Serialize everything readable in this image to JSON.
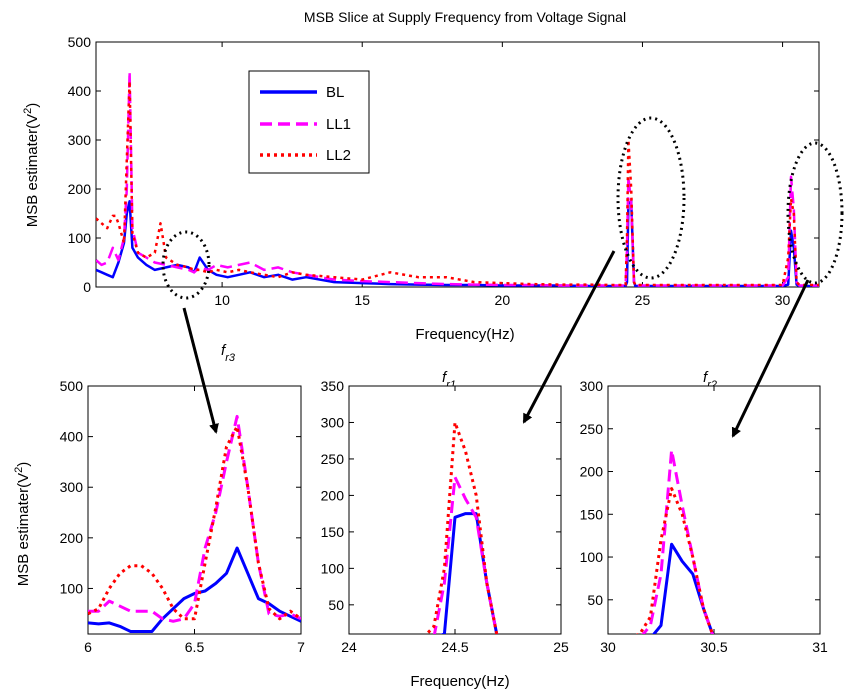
{
  "chart_data": [
    {
      "type": "line",
      "title": "MSB Slice at Supply Frequency from Voltage Signal",
      "xlabel": "Frequency(Hz)",
      "ylabel": "MSB estimater(V²)",
      "xlim": [
        5.5,
        31.3
      ],
      "ylim": [
        0,
        500
      ],
      "xticks": [
        10,
        15,
        20,
        25,
        30
      ],
      "yticks": [
        0,
        100,
        200,
        300,
        400,
        500
      ],
      "legend_position": "upper-left",
      "series": [
        {
          "name": "BL",
          "color": "#0000ff",
          "style": "solid",
          "x": [
            5.5,
            5.7,
            5.9,
            6.1,
            6.3,
            6.5,
            6.6,
            6.7,
            6.8,
            7.0,
            7.3,
            7.6,
            8.0,
            8.4,
            8.8,
            9.0,
            9.2,
            9.5,
            9.8,
            10.2,
            10.6,
            11.0,
            11.5,
            12.0,
            12.5,
            13.0,
            14.0,
            15.0,
            16.0,
            17.0,
            18.0,
            19.0,
            20.0,
            21.0,
            22.0,
            23.0,
            24.0,
            24.4,
            24.45,
            24.5,
            24.6,
            24.7,
            24.75,
            25.0,
            26.0,
            27.0,
            28.0,
            29.0,
            30.0,
            30.2,
            30.3,
            30.4,
            30.5,
            30.6,
            31.3
          ],
          "y": [
            35,
            30,
            25,
            20,
            50,
            90,
            150,
            175,
            80,
            60,
            45,
            35,
            40,
            45,
            40,
            30,
            60,
            35,
            25,
            20,
            25,
            30,
            20,
            25,
            15,
            20,
            10,
            8,
            6,
            5,
            4,
            4,
            3,
            3,
            3,
            2,
            2,
            2,
            10,
            170,
            175,
            10,
            2,
            2,
            2,
            2,
            2,
            2,
            2,
            5,
            115,
            80,
            5,
            2,
            2
          ]
        },
        {
          "name": "LL1",
          "color": "#ff00ff",
          "style": "dashed",
          "x": [
            5.5,
            5.7,
            5.9,
            6.1,
            6.3,
            6.5,
            6.6,
            6.7,
            6.8,
            7.0,
            7.3,
            7.6,
            8.0,
            8.4,
            8.8,
            9.0,
            9.2,
            9.5,
            9.8,
            10.2,
            10.6,
            11.0,
            11.5,
            12.0,
            12.5,
            13.0,
            14.0,
            15.0,
            16.0,
            17.0,
            18.0,
            19.0,
            20.0,
            21.0,
            22.0,
            23.0,
            24.0,
            24.4,
            24.45,
            24.5,
            24.6,
            24.7,
            24.75,
            25.0,
            26.0,
            27.0,
            28.0,
            29.0,
            30.0,
            30.2,
            30.3,
            30.4,
            30.5,
            30.6,
            31.3
          ],
          "y": [
            55,
            45,
            50,
            80,
            55,
            100,
            200,
            440,
            120,
            70,
            60,
            50,
            45,
            40,
            35,
            30,
            40,
            35,
            45,
            40,
            45,
            50,
            35,
            40,
            30,
            25,
            15,
            12,
            10,
            8,
            6,
            5,
            4,
            4,
            3,
            3,
            3,
            3,
            80,
            225,
            170,
            10,
            3,
            3,
            3,
            3,
            3,
            3,
            3,
            20,
            225,
            160,
            10,
            3,
            3
          ]
        },
        {
          "name": "LL2",
          "color": "#ff0000",
          "style": "dotted",
          "x": [
            5.5,
            5.7,
            5.9,
            6.1,
            6.2,
            6.3,
            6.5,
            6.6,
            6.7,
            6.8,
            7.0,
            7.3,
            7.6,
            7.8,
            8.0,
            8.4,
            8.8,
            9.0,
            9.2,
            9.5,
            9.8,
            10.2,
            10.6,
            11.0,
            11.5,
            12.0,
            12.5,
            13.0,
            14.0,
            15.0,
            16.0,
            17.0,
            18.0,
            19.0,
            20.0,
            21.0,
            22.0,
            23.0,
            24.0,
            24.4,
            24.45,
            24.5,
            24.6,
            24.7,
            24.75,
            25.0,
            26.0,
            27.0,
            28.0,
            29.0,
            30.0,
            30.2,
            30.3,
            30.4,
            30.5,
            30.6,
            31.3
          ],
          "y": [
            140,
            130,
            120,
            145,
            145,
            130,
            90,
            260,
            420,
            110,
            70,
            60,
            70,
            130,
            60,
            45,
            40,
            35,
            35,
            30,
            35,
            30,
            35,
            30,
            25,
            20,
            30,
            25,
            20,
            15,
            30,
            20,
            20,
            10,
            8,
            6,
            5,
            5,
            4,
            4,
            100,
            300,
            200,
            10,
            4,
            4,
            4,
            4,
            4,
            4,
            4,
            60,
            180,
            150,
            10,
            4,
            4
          ]
        }
      ]
    },
    {
      "type": "line",
      "title": "f_r3",
      "xlabel": "",
      "ylabel": "MSB estimater(V²)",
      "xlim": [
        6,
        7
      ],
      "ylim": [
        10,
        500
      ],
      "xticks": [
        6,
        6.5,
        7
      ],
      "yticks": [
        100,
        200,
        300,
        400,
        500
      ],
      "series": [
        {
          "name": "BL",
          "color": "#0000ff",
          "style": "solid",
          "x": [
            6.0,
            6.05,
            6.1,
            6.15,
            6.2,
            6.25,
            6.3,
            6.35,
            6.4,
            6.45,
            6.5,
            6.55,
            6.6,
            6.65,
            6.7,
            6.75,
            6.8,
            6.85,
            6.9,
            6.95,
            7.0
          ],
          "y": [
            32,
            30,
            32,
            25,
            15,
            15,
            15,
            40,
            60,
            80,
            90,
            95,
            110,
            130,
            180,
            130,
            80,
            70,
            55,
            45,
            35
          ]
        },
        {
          "name": "LL1",
          "color": "#ff00ff",
          "style": "dashed",
          "x": [
            6.0,
            6.05,
            6.1,
            6.15,
            6.2,
            6.25,
            6.3,
            6.35,
            6.4,
            6.45,
            6.5,
            6.55,
            6.6,
            6.65,
            6.7,
            6.75,
            6.8,
            6.85,
            6.9,
            6.95,
            7.0
          ],
          "y": [
            55,
            55,
            75,
            65,
            55,
            55,
            55,
            40,
            35,
            40,
            70,
            180,
            250,
            350,
            440,
            300,
            150,
            50,
            45,
            50,
            40
          ]
        },
        {
          "name": "LL2",
          "color": "#ff0000",
          "style": "dotted",
          "x": [
            6.0,
            6.05,
            6.1,
            6.15,
            6.2,
            6.25,
            6.3,
            6.35,
            6.4,
            6.45,
            6.5,
            6.55,
            6.6,
            6.65,
            6.7,
            6.75,
            6.8,
            6.85,
            6.9,
            6.95,
            7.0
          ],
          "y": [
            50,
            60,
            100,
            130,
            145,
            145,
            130,
            100,
            60,
            40,
            40,
            150,
            260,
            380,
            420,
            300,
            150,
            60,
            40,
            55,
            40
          ]
        }
      ]
    },
    {
      "type": "line",
      "title": "f_r1",
      "xlabel": "Frequency(Hz)",
      "ylabel": "",
      "xlim": [
        24,
        25
      ],
      "ylim": [
        10,
        350
      ],
      "xticks": [
        24,
        24.5,
        25
      ],
      "yticks": [
        50,
        100,
        150,
        200,
        250,
        300,
        350
      ],
      "series": [
        {
          "name": "BL",
          "color": "#0000ff",
          "style": "solid",
          "x": [
            24.4,
            24.45,
            24.5,
            24.55,
            24.6,
            24.65,
            24.7
          ],
          "y": [
            5,
            10,
            170,
            175,
            175,
            80,
            5
          ]
        },
        {
          "name": "LL1",
          "color": "#ff00ff",
          "style": "dashed",
          "x": [
            24.4,
            24.45,
            24.5,
            24.55,
            24.6,
            24.65,
            24.7
          ],
          "y": [
            5,
            80,
            225,
            195,
            170,
            80,
            5
          ]
        },
        {
          "name": "LL2",
          "color": "#ff0000",
          "style": "dotted",
          "x": [
            24.35,
            24.4,
            24.45,
            24.5,
            24.55,
            24.6,
            24.65,
            24.7
          ],
          "y": [
            5,
            20,
            100,
            300,
            260,
            200,
            80,
            5
          ]
        }
      ]
    },
    {
      "type": "line",
      "title": "f_r2",
      "xlabel": "",
      "ylabel": "",
      "xlim": [
        30,
        31
      ],
      "ylim": [
        10,
        300
      ],
      "xticks": [
        30,
        30.5,
        31
      ],
      "yticks": [
        50,
        100,
        150,
        200,
        250,
        300
      ],
      "series": [
        {
          "name": "BL",
          "color": "#0000ff",
          "style": "solid",
          "x": [
            30.2,
            30.25,
            30.3,
            30.35,
            30.4,
            30.45,
            30.5
          ],
          "y": [
            5,
            20,
            115,
            95,
            80,
            40,
            5
          ]
        },
        {
          "name": "LL1",
          "color": "#ff00ff",
          "style": "dashed",
          "x": [
            30.15,
            30.2,
            30.25,
            30.3,
            30.35,
            30.4,
            30.45,
            30.5
          ],
          "y": [
            5,
            20,
            80,
            225,
            160,
            100,
            40,
            5
          ]
        },
        {
          "name": "LL2",
          "color": "#ff0000",
          "style": "dotted",
          "x": [
            30.1,
            30.15,
            30.2,
            30.25,
            30.3,
            30.35,
            30.4,
            30.45,
            30.5
          ],
          "y": [
            5,
            10,
            30,
            120,
            180,
            150,
            100,
            40,
            5
          ]
        }
      ]
    }
  ]
}
